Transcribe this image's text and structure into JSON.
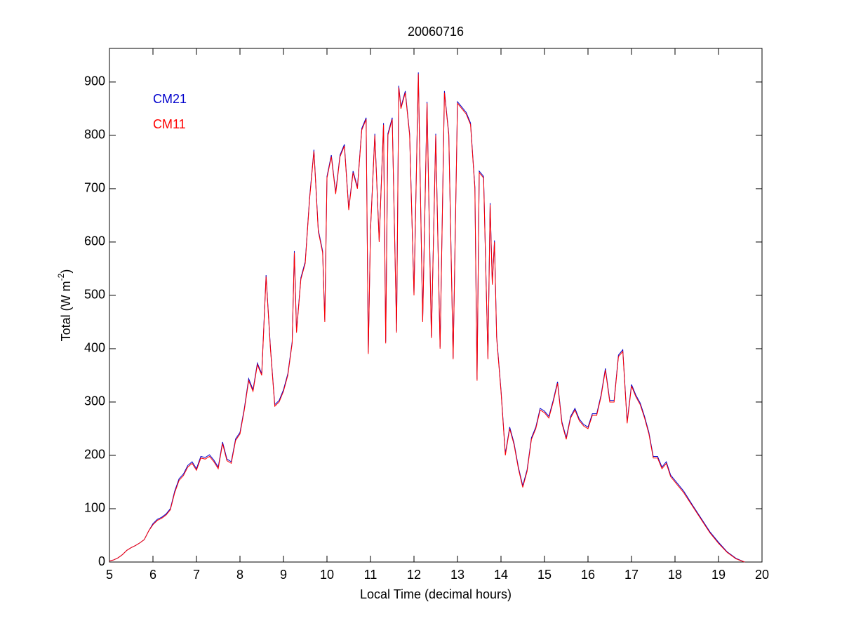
{
  "chart_data": {
    "type": "line",
    "title": "20060716",
    "xlabel": "Local Time (decimal hours)",
    "ylabel": [
      "Total (W m",
      "-2",
      ")"
    ],
    "xlim": [
      5,
      20
    ],
    "xticks": [
      5,
      6,
      7,
      8,
      9,
      10,
      11,
      12,
      13,
      14,
      15,
      16,
      17,
      18,
      19,
      20
    ],
    "ylim": [
      0,
      963
    ],
    "yticks": [
      0,
      100,
      200,
      300,
      400,
      500,
      600,
      700,
      800,
      900
    ],
    "legend": "upper left",
    "grid": false,
    "x": [
      5.0,
      5.1,
      5.2,
      5.3,
      5.4,
      5.5,
      5.6,
      5.7,
      5.8,
      5.9,
      6.0,
      6.1,
      6.2,
      6.3,
      6.4,
      6.5,
      6.6,
      6.7,
      6.8,
      6.9,
      7.0,
      7.1,
      7.2,
      7.3,
      7.4,
      7.5,
      7.6,
      7.7,
      7.8,
      7.9,
      8.0,
      8.1,
      8.2,
      8.3,
      8.4,
      8.5,
      8.6,
      8.7,
      8.8,
      8.9,
      9.0,
      9.1,
      9.2,
      9.25,
      9.3,
      9.4,
      9.5,
      9.6,
      9.7,
      9.8,
      9.9,
      9.95,
      10.0,
      10.1,
      10.2,
      10.3,
      10.4,
      10.5,
      10.6,
      10.7,
      10.8,
      10.9,
      10.95,
      11.0,
      11.1,
      11.2,
      11.3,
      11.35,
      11.4,
      11.5,
      11.6,
      11.65,
      11.7,
      11.8,
      11.9,
      12.0,
      12.1,
      12.2,
      12.3,
      12.4,
      12.5,
      12.6,
      12.7,
      12.8,
      12.9,
      13.0,
      13.1,
      13.2,
      13.3,
      13.4,
      13.45,
      13.5,
      13.6,
      13.7,
      13.75,
      13.8,
      13.85,
      13.9,
      14.0,
      14.1,
      14.2,
      14.3,
      14.4,
      14.5,
      14.6,
      14.7,
      14.8,
      14.9,
      15.0,
      15.1,
      15.2,
      15.3,
      15.4,
      15.5,
      15.6,
      15.7,
      15.8,
      15.9,
      16.0,
      16.1,
      16.2,
      16.3,
      16.4,
      16.5,
      16.6,
      16.7,
      16.8,
      16.9,
      17.0,
      17.1,
      17.2,
      17.3,
      17.4,
      17.5,
      17.6,
      17.7,
      17.8,
      17.9,
      18.0,
      18.2,
      18.4,
      18.6,
      18.8,
      19.0,
      19.2,
      19.4,
      19.6
    ],
    "series": [
      {
        "name": "CM21",
        "color": "#0000cc",
        "values": [
          2,
          4,
          8,
          14,
          22,
          27,
          31,
          36,
          42,
          58,
          72,
          80,
          84,
          90,
          100,
          133,
          156,
          165,
          181,
          188,
          175,
          198,
          196,
          201,
          191,
          178,
          225,
          193,
          188,
          231,
          243,
          288,
          344,
          323,
          373,
          353,
          538,
          403,
          295,
          303,
          323,
          353,
          413,
          583,
          433,
          533,
          563,
          683,
          773,
          623,
          583,
          453,
          723,
          763,
          693,
          763,
          783,
          663,
          733,
          703,
          813,
          833,
          393,
          623,
          803,
          603,
          823,
          413,
          803,
          833,
          433,
          893,
          853,
          883,
          803,
          503,
          918,
          453,
          863,
          423,
          803,
          403,
          883,
          803,
          383,
          863,
          853,
          843,
          823,
          703,
          343,
          733,
          723,
          383,
          673,
          523,
          603,
          423,
          323,
          203,
          253,
          223,
          178,
          143,
          173,
          233,
          253,
          288,
          283,
          273,
          303,
          338,
          263,
          233,
          273,
          288,
          268,
          258,
          253,
          278,
          278,
          313,
          363,
          303,
          303,
          388,
          398,
          263,
          333,
          313,
          298,
          273,
          243,
          198,
          198,
          178,
          188,
          163,
          153,
          133,
          107,
          82,
          57,
          37,
          19,
          7,
          0
        ]
      },
      {
        "name": "CM11",
        "color": "#ff0000",
        "values": [
          2,
          4,
          8,
          14,
          22,
          27,
          31,
          36,
          42,
          58,
          70,
          78,
          82,
          88,
          98,
          130,
          153,
          162,
          178,
          185,
          172,
          195,
          193,
          198,
          188,
          175,
          222,
          190,
          185,
          228,
          240,
          285,
          340,
          320,
          370,
          350,
          535,
          400,
          292,
          300,
          320,
          350,
          410,
          580,
          430,
          530,
          560,
          680,
          770,
          620,
          580,
          450,
          720,
          760,
          690,
          760,
          780,
          660,
          730,
          700,
          810,
          830,
          390,
          620,
          800,
          600,
          820,
          410,
          800,
          830,
          430,
          890,
          850,
          880,
          800,
          500,
          915,
          450,
          860,
          420,
          800,
          400,
          880,
          800,
          380,
          860,
          850,
          840,
          820,
          700,
          340,
          730,
          720,
          380,
          670,
          520,
          600,
          420,
          320,
          200,
          250,
          220,
          175,
          140,
          170,
          230,
          250,
          285,
          280,
          270,
          300,
          335,
          260,
          230,
          270,
          285,
          265,
          255,
          250,
          275,
          275,
          310,
          360,
          300,
          300,
          385,
          395,
          260,
          330,
          310,
          295,
          270,
          240,
          195,
          195,
          175,
          185,
          160,
          150,
          130,
          105,
          80,
          55,
          35,
          18,
          6,
          0
        ]
      }
    ]
  }
}
